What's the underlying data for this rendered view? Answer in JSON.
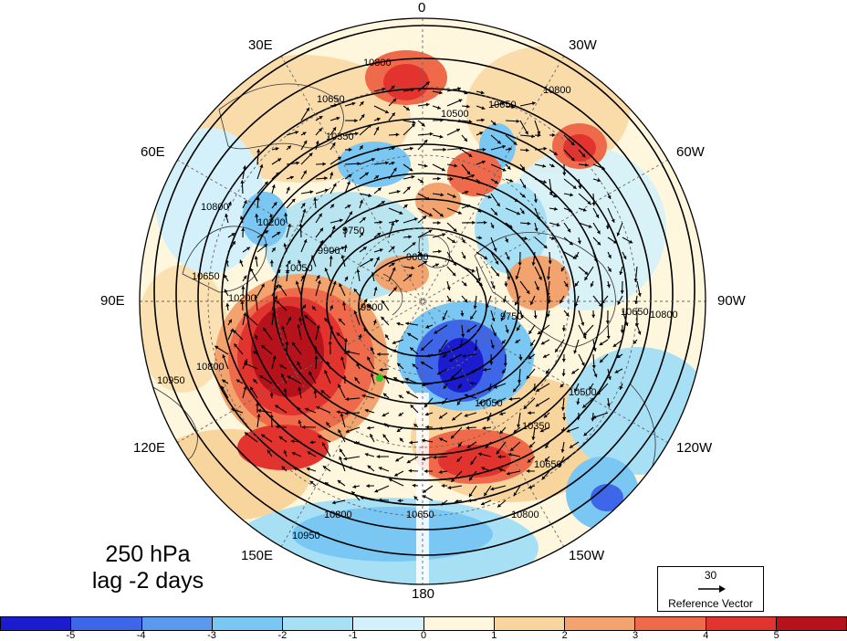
{
  "lon_labels": {
    "l0": "0",
    "l30w": "30W",
    "l60w": "60W",
    "l90w": "90W",
    "l120w": "120W",
    "l150w": "150W",
    "l180": "180",
    "l150e": "150E",
    "l120e": "120E",
    "l90e": "90E",
    "l60e": "60E",
    "l30e": "30E"
  },
  "title": {
    "level": "250 hPa",
    "lag": "lag -2 days"
  },
  "reference_vector": {
    "value": "30",
    "label": "Reference Vector"
  },
  "colorbar": {
    "colors": [
      "#1c1ccf",
      "#3d66e8",
      "#5a99ee",
      "#79c7f2",
      "#a7e0f5",
      "#d4f1fb",
      "#fff7dd",
      "#f9d59e",
      "#f3a36d",
      "#ee6a4a",
      "#e3332e",
      "#b5121c"
    ],
    "ticks": [
      "-5",
      "-4",
      "-3",
      "-2",
      "-1",
      "0",
      "1",
      "2",
      "3",
      "4",
      "5"
    ]
  },
  "contour_labels": [
    "10800",
    "10650",
    "10500",
    "10350",
    "10200",
    "10050",
    "9900",
    "9750",
    "9600",
    "10950"
  ],
  "marker": {
    "color": "#22cc22"
  }
}
